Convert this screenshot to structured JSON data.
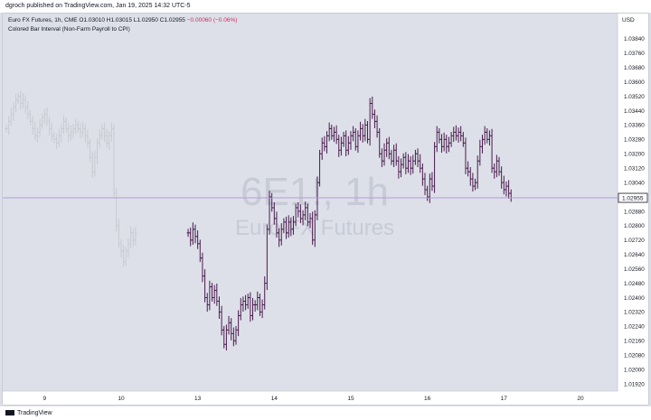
{
  "header": {
    "published": "dgroch published on TradingView.com, Jan 19, 2025 14:32 UTC-5"
  },
  "legend": {
    "symbol": "Euro FX Futures, 1h, CME",
    "o": "O1.03010",
    "h": "H1.03015",
    "l": "L1.02950",
    "c": "C1.02955",
    "chg": "−0.00060 (−0.06%)",
    "indicator": "Colored Bar Interval (Non-Farm Payroll to CPI)"
  },
  "watermark": {
    "ticker": "6E1!, 1h",
    "name": "Euro FX Futures"
  },
  "currency": "USD",
  "last_price_label": "1.02955",
  "footer": {
    "brand": "TradingView"
  },
  "colors": {
    "highlight_bars": "#4a1a4d",
    "faded_bars": "#c8cad1",
    "last_price_line": "#b59ad6",
    "chg_negative": "#e0245e"
  },
  "chart_data": {
    "type": "ohlc",
    "title": "Euro FX Futures, 1h, CME",
    "ylim": [
      1.0188,
      1.0398
    ],
    "y_ticks": [
      "1.03840",
      "1.03760",
      "1.03680",
      "1.03600",
      "1.03520",
      "1.03440",
      "1.03360",
      "1.03280",
      "1.03200",
      "1.03120",
      "1.03040",
      "1.02960",
      "1.02880",
      "1.02800",
      "1.02720",
      "1.02640",
      "1.02560",
      "1.02480",
      "1.02400",
      "1.02320",
      "1.02240",
      "1.02160",
      "1.02080",
      "1.02000",
      "1.01920"
    ],
    "x_ticks": [
      {
        "label": "9",
        "x": 8.0
      },
      {
        "label": "10",
        "x": 24.0
      },
      {
        "label": "13",
        "x": 40.0
      },
      {
        "label": "14",
        "x": 56.0
      },
      {
        "label": "15",
        "x": 72.0
      },
      {
        "label": "16",
        "x": 88.0
      },
      {
        "label": "17",
        "x": 104.0
      },
      {
        "label": "20",
        "x": 120.0
      }
    ],
    "last_price": 1.02955,
    "segments": [
      {
        "name": "faded",
        "x_start": 0.0,
        "x_step": 0.5,
        "close": [
          1.0334,
          1.0338,
          1.0342,
          1.0346,
          1.035,
          1.0352,
          1.0348,
          1.035,
          1.0346,
          1.0342,
          1.0338,
          1.0334,
          1.033,
          1.0332,
          1.0336,
          1.034,
          1.0342,
          1.0338,
          1.0334,
          1.033,
          1.0328,
          1.0326,
          1.033,
          1.0334,
          1.0338,
          1.0334,
          1.033,
          1.0332,
          1.0334,
          1.0336,
          1.0334,
          1.0332,
          1.0334,
          1.033,
          1.0326,
          1.0318,
          1.031,
          1.0318,
          1.0326,
          1.033,
          1.0334,
          1.033,
          1.0326,
          1.033,
          1.0334,
          1.0298,
          1.028,
          1.027,
          1.0266,
          1.026,
          1.0266,
          1.027,
          1.0276,
          1.0272,
          1.0276
        ]
      },
      {
        "name": "highlight",
        "x_start": 38.0,
        "x_step": 0.5,
        "close": [
          1.0276,
          1.0272,
          1.0278,
          1.0274,
          1.027,
          1.0262,
          1.0252,
          1.024,
          1.0236,
          1.0246,
          1.024,
          1.0244,
          1.0238,
          1.0232,
          1.0222,
          1.0214,
          1.0222,
          1.0226,
          1.022,
          1.0216,
          1.0222,
          1.023,
          1.0236,
          1.0238,
          1.0236,
          1.024,
          1.023,
          1.0236,
          1.0236,
          1.024,
          1.0232,
          1.0236,
          1.0248,
          1.0278,
          1.0296,
          1.029,
          1.0284,
          1.0276,
          1.0272,
          1.0278,
          1.0282,
          1.0276,
          1.0282,
          1.0278,
          1.0282,
          1.029,
          1.0288,
          1.0284,
          1.0286,
          1.029,
          1.0282,
          1.0284,
          1.0272,
          1.0286,
          1.0304,
          1.032,
          1.0326,
          1.0324,
          1.033,
          1.0334,
          1.033,
          1.0332,
          1.0328,
          1.0322,
          1.0326,
          1.033,
          1.0322,
          1.0326,
          1.033,
          1.0332,
          1.0324,
          1.033,
          1.0334,
          1.033,
          1.0336,
          1.0328,
          1.0348,
          1.0342,
          1.0338,
          1.0332,
          1.032,
          1.0316,
          1.0322,
          1.0326,
          1.032,
          1.0316,
          1.0322,
          1.0316,
          1.031,
          1.0314,
          1.0318,
          1.0312,
          1.0316,
          1.0312,
          1.0316,
          1.032,
          1.0316,
          1.0312,
          1.0306,
          1.03,
          1.0296,
          1.0306,
          1.0302,
          1.0324,
          1.0332,
          1.0328,
          1.0324,
          1.0328,
          1.0324,
          1.0326,
          1.033,
          1.0332,
          1.033,
          1.0332,
          1.033,
          1.0326,
          1.0312,
          1.031,
          1.0306,
          1.0302,
          1.0304,
          1.0316,
          1.0324,
          1.0328,
          1.0332,
          1.0328,
          1.033,
          1.0312,
          1.031,
          1.0316,
          1.031,
          1.0304,
          1.03,
          1.0302,
          1.0298,
          1.02955
        ]
      }
    ],
    "x_domain": [
      0.0,
      127.0
    ]
  }
}
